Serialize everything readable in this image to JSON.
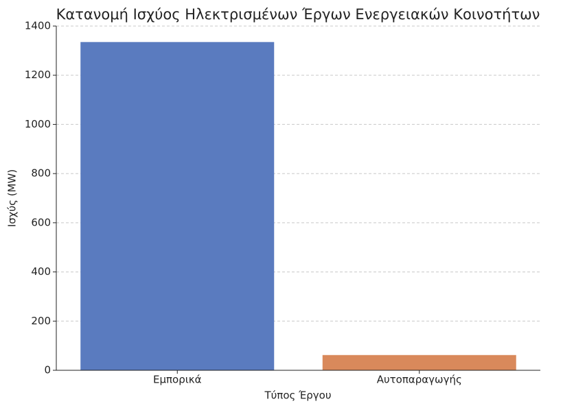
{
  "chart_data": {
    "type": "bar",
    "title": "Κατανομή Ισχύος Ηλεκτρισμένων Έργων Ενεργειακών Κοινοτήτων",
    "x_label": "Τύπος Έργου",
    "y_label": "Ισχύς (MW)",
    "categories": [
      "Εμπορικά",
      "Αυτοπαραγωγής"
    ],
    "values": [
      1335,
      62
    ],
    "colors": [
      "#5a7bbf",
      "#d9895b"
    ],
    "ylim": [
      0,
      1400
    ],
    "yticks": [
      0,
      200,
      400,
      600,
      800,
      1000,
      1200,
      1400
    ],
    "grid": true
  }
}
